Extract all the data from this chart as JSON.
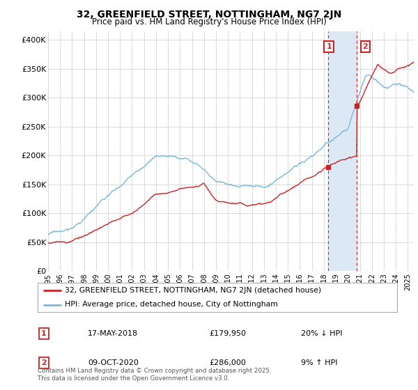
{
  "title": "32, GREENFIELD STREET, NOTTINGHAM, NG7 2JN",
  "subtitle": "Price paid vs. HM Land Registry's House Price Index (HPI)",
  "ylabel_ticks": [
    "£0",
    "£50K",
    "£100K",
    "£150K",
    "£200K",
    "£250K",
    "£300K",
    "£350K",
    "£400K"
  ],
  "ytick_values": [
    0,
    50000,
    100000,
    150000,
    200000,
    250000,
    300000,
    350000,
    400000
  ],
  "ylim": [
    0,
    415000
  ],
  "xlim_start": 1995.0,
  "xlim_end": 2025.5,
  "hpi_color": "#7ab8d9",
  "price_color": "#cc2222",
  "sale1_date": 2018.37,
  "sale1_price": 179950,
  "sale2_date": 2020.75,
  "sale2_price": 286000,
  "sale1_label": "17-MAY-2018",
  "sale1_amount": "£179,950",
  "sale1_hpi": "20% ↓ HPI",
  "sale2_label": "09-OCT-2020",
  "sale2_amount": "£286,000",
  "sale2_hpi": "9% ↑ HPI",
  "legend_line1": "32, GREENFIELD STREET, NOTTINGHAM, NG7 2JN (detached house)",
  "legend_line2": "HPI: Average price, detached house, City of Nottingham",
  "footer": "Contains HM Land Registry data © Crown copyright and database right 2025.\nThis data is licensed under the Open Government Licence v3.0.",
  "background_color": "#ffffff",
  "grid_color": "#cccccc",
  "shade_color": "#dde8f5"
}
